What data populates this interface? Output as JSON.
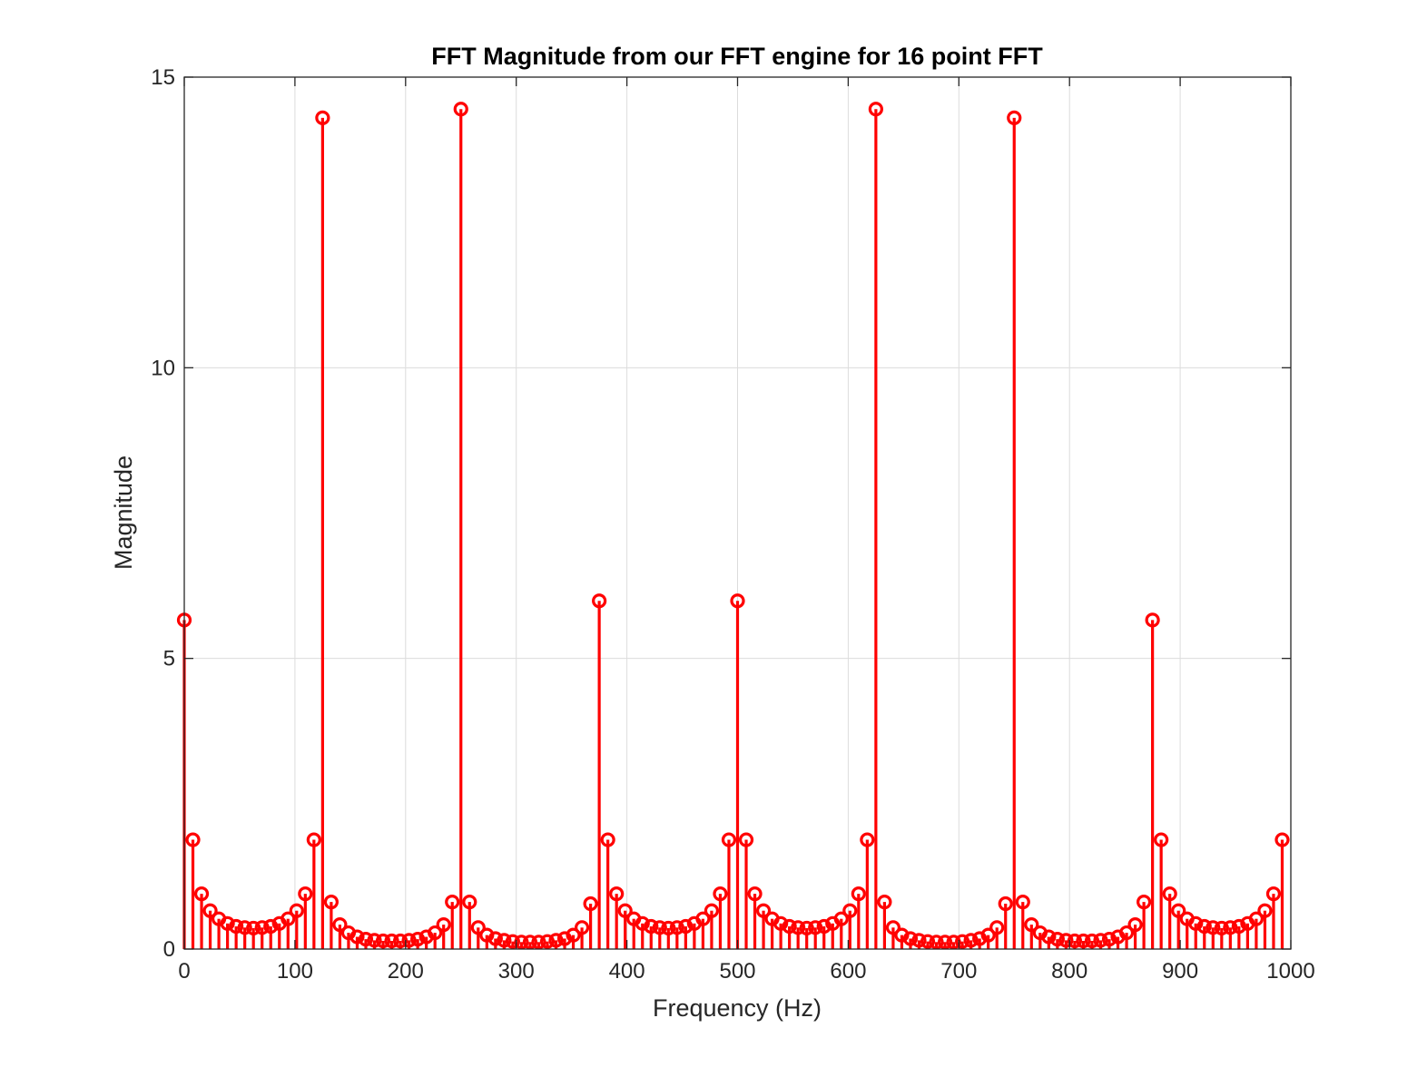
{
  "chart_data": {
    "type": "stem",
    "title": "FFT Magnitude from our FFT engine for 16 point FFT",
    "xlabel": "Frequency (Hz)",
    "ylabel": "Magnitude",
    "xlim": [
      0,
      1000
    ],
    "ylim": [
      0,
      15
    ],
    "xticks": [
      "0",
      "100",
      "200",
      "300",
      "400",
      "500",
      "600",
      "700",
      "800",
      "900",
      "1000"
    ],
    "yticks": [
      "0",
      "5",
      "10",
      "15"
    ],
    "grid": true,
    "series": [
      {
        "color": "#ff0000",
        "marker": "circle",
        "x": [
          0,
          7.8125,
          15.625,
          23.4375,
          31.25,
          39.0625,
          46.875,
          54.6875,
          62.5,
          70.3125,
          78.125,
          85.9375,
          93.75,
          101.5625,
          109.375,
          117.1875,
          125,
          132.8125,
          140.625,
          148.4375,
          156.25,
          164.0625,
          171.875,
          179.6875,
          187.5,
          195.3125,
          203.125,
          210.9375,
          218.75,
          226.5625,
          234.375,
          242.1875,
          250,
          257.8125,
          265.625,
          273.4375,
          281.25,
          289.0625,
          296.875,
          304.6875,
          312.5,
          320.3125,
          328.125,
          335.9375,
          343.75,
          351.5625,
          359.375,
          367.1875,
          375,
          382.8125,
          390.625,
          398.4375,
          406.25,
          414.0625,
          421.875,
          429.6875,
          437.5,
          445.3125,
          453.125,
          460.9375,
          468.75,
          476.5625,
          484.375,
          492.1875,
          500,
          507.8125,
          515.625,
          523.4375,
          531.25,
          539.0625,
          546.875,
          554.6875,
          562.5,
          570.3125,
          578.125,
          585.9375,
          593.75,
          601.5625,
          609.375,
          617.1875,
          625,
          632.8125,
          640.625,
          648.4375,
          656.25,
          664.0625,
          671.875,
          679.6875,
          687.5,
          695.3125,
          703.125,
          710.9375,
          718.75,
          726.5625,
          734.375,
          742.1875,
          750,
          757.8125,
          765.625,
          773.4375,
          781.25,
          789.0625,
          796.875,
          804.6875,
          812.5,
          820.3125,
          828.125,
          835.9375,
          843.75,
          851.5625,
          859.375,
          867.1875,
          875,
          882.8125,
          890.625,
          898.4375,
          906.25,
          914.0625,
          921.875,
          929.6875,
          937.5,
          945.3125,
          953.125,
          960.9375,
          968.75,
          976.5625,
          984.375,
          992.1875
        ],
        "y": [
          5.66,
          1.88,
          0.95,
          0.66,
          0.52,
          0.44,
          0.39,
          0.37,
          0.36,
          0.37,
          0.39,
          0.44,
          0.52,
          0.66,
          0.95,
          1.88,
          14.3,
          0.81,
          0.42,
          0.28,
          0.21,
          0.17,
          0.15,
          0.14,
          0.14,
          0.14,
          0.15,
          0.17,
          0.21,
          0.28,
          0.42,
          0.81,
          14.45,
          0.81,
          0.37,
          0.24,
          0.18,
          0.15,
          0.13,
          0.12,
          0.12,
          0.12,
          0.13,
          0.15,
          0.18,
          0.24,
          0.37,
          0.78,
          5.99,
          1.88,
          0.95,
          0.66,
          0.52,
          0.44,
          0.39,
          0.37,
          0.36,
          0.37,
          0.39,
          0.44,
          0.52,
          0.66,
          0.95,
          1.88,
          5.99,
          1.88,
          0.95,
          0.66,
          0.52,
          0.44,
          0.39,
          0.37,
          0.36,
          0.37,
          0.39,
          0.44,
          0.52,
          0.66,
          0.95,
          1.88,
          14.45,
          0.81,
          0.37,
          0.24,
          0.18,
          0.15,
          0.13,
          0.12,
          0.12,
          0.12,
          0.13,
          0.15,
          0.18,
          0.24,
          0.37,
          0.78,
          14.3,
          0.81,
          0.42,
          0.28,
          0.21,
          0.17,
          0.15,
          0.14,
          0.14,
          0.14,
          0.15,
          0.17,
          0.21,
          0.28,
          0.42,
          0.81,
          5.66,
          1.88,
          0.95,
          0.66,
          0.52,
          0.44,
          0.39,
          0.37,
          0.36,
          0.37,
          0.39,
          0.44,
          0.52,
          0.66,
          0.95,
          1.88
        ]
      }
    ]
  }
}
